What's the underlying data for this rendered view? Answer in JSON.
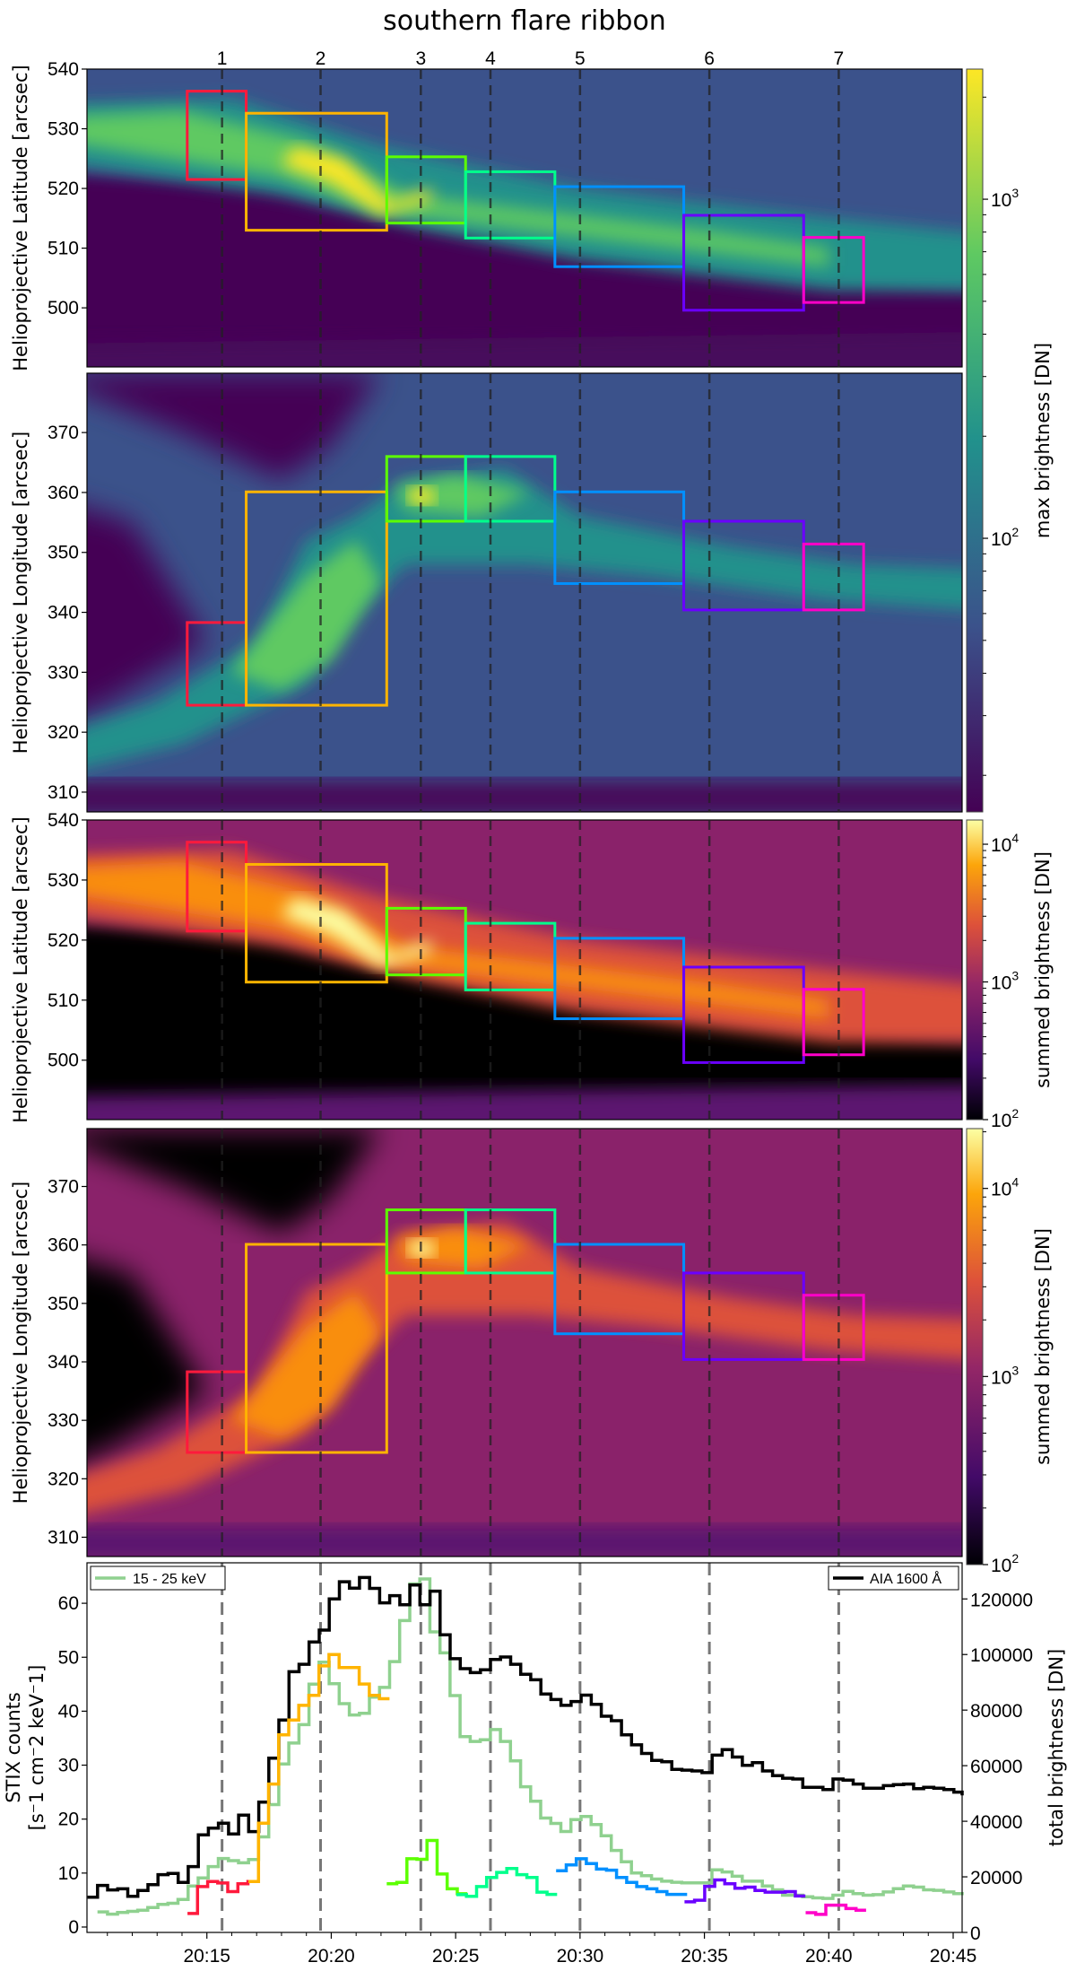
{
  "title": "southern flare ribbon",
  "markers": {
    "labels": [
      "1",
      "2",
      "3",
      "4",
      "5",
      "6",
      "7"
    ],
    "times_min_after_2000": [
      15.61,
      19.57,
      23.6,
      26.4,
      30.0,
      35.2,
      40.4
    ]
  },
  "image_panels": [
    {
      "name": "max-latitude",
      "ylabel": "Helioprojective Latitude [arcsec]",
      "ylim": [
        490.1,
        540
      ],
      "yticks": [
        "540",
        "530",
        "520",
        "510",
        "500"
      ],
      "ytick_values": [
        540,
        530,
        520,
        510,
        500
      ],
      "colormap": "viridis",
      "coord": "lat"
    },
    {
      "name": "max-longitude",
      "ylabel": "Helioprojective Longitude [arcsec]",
      "ylim": [
        306.7,
        379.9
      ],
      "yticks": [
        "370",
        "360",
        "350",
        "340",
        "330",
        "320",
        "310"
      ],
      "ytick_values": [
        370,
        360,
        350,
        340,
        330,
        320,
        310
      ],
      "colormap": "viridis",
      "coord": "lon"
    },
    {
      "name": "summed-latitude",
      "ylabel": "Helioprojective Latitude [arcsec]",
      "ylim": [
        490.1,
        540
      ],
      "yticks": [
        "540",
        "530",
        "520",
        "510",
        "500"
      ],
      "ytick_values": [
        540,
        530,
        520,
        510,
        500
      ],
      "colormap": "inferno",
      "coord": "lat"
    },
    {
      "name": "summed-longitude",
      "ylabel": "Helioprojective Longitude [arcsec]",
      "ylim": [
        306.7,
        379.9
      ],
      "yticks": [
        "370",
        "360",
        "350",
        "340",
        "330",
        "320",
        "310"
      ],
      "ytick_values": [
        370,
        360,
        350,
        340,
        330,
        320,
        310
      ],
      "colormap": "inferno",
      "coord": "lon"
    }
  ],
  "colorbars": [
    {
      "label": "max brightness [DN]",
      "colormap": "viridis",
      "range": [
        15.6,
        2420
      ],
      "ticks": [
        {
          "base": "10",
          "exp": "3",
          "value": 1000
        },
        {
          "base": "10",
          "exp": "2",
          "value": 100
        }
      ]
    },
    {
      "label": "summed brightness [DN]",
      "colormap": "inferno",
      "range": [
        100,
        15000
      ],
      "ticks": [
        {
          "base": "10",
          "exp": "4",
          "value": 10000
        },
        {
          "base": "10",
          "exp": "3",
          "value": 1000
        },
        {
          "base": "10",
          "exp": "2",
          "value": 100
        }
      ]
    },
    {
      "label": "summed brightness [DN]",
      "colormap": "inferno",
      "range": [
        100,
        20800
      ],
      "ticks": [
        {
          "base": "10",
          "exp": "4",
          "value": 10000
        },
        {
          "base": "10",
          "exp": "3",
          "value": 1000
        },
        {
          "base": "10",
          "exp": "2",
          "value": 100
        }
      ]
    }
  ],
  "boxes": [
    {
      "id": "1",
      "color": "#ff1a3c",
      "t_range": [
        14.21,
        16.58
      ],
      "lat_range": [
        521.5,
        536.3
      ],
      "lon_range": [
        324.5,
        338.3
      ]
    },
    {
      "id": "2",
      "color": "#ffb400",
      "t_range": [
        16.58,
        22.23
      ],
      "lat_range": [
        513.0,
        532.6
      ],
      "lon_range": [
        324.5,
        360.1
      ]
    },
    {
      "id": "3",
      "color": "#5cff00",
      "t_range": [
        22.23,
        25.4
      ],
      "lat_range": [
        514.2,
        525.3
      ],
      "lon_range": [
        355.2,
        366.0
      ]
    },
    {
      "id": "4",
      "color": "#00ff8c",
      "t_range": [
        25.4,
        28.99
      ],
      "lat_range": [
        511.7,
        522.8
      ],
      "lon_range": [
        355.2,
        366.0
      ]
    },
    {
      "id": "5",
      "color": "#0090ff",
      "t_range": [
        28.99,
        34.17
      ],
      "lat_range": [
        506.9,
        520.3
      ],
      "lon_range": [
        344.8,
        360.1
      ]
    },
    {
      "id": "6",
      "color": "#6a00ff",
      "t_range": [
        34.17,
        38.99
      ],
      "lat_range": [
        499.6,
        515.5
      ],
      "lon_range": [
        340.4,
        355.2
      ]
    },
    {
      "id": "7",
      "color": "#ff00c8",
      "t_range": [
        38.99,
        41.4
      ],
      "lat_range": [
        500.9,
        511.8
      ],
      "lon_range": [
        340.4,
        351.4
      ]
    }
  ],
  "chart_data": {
    "type": "line",
    "xlim_min_after_2000": [
      10.18,
      45.36
    ],
    "xticks": [
      "20:15",
      "20:20",
      "20:25",
      "20:30",
      "20:35",
      "20:40",
      "20:45"
    ],
    "xtick_values": [
      15,
      20,
      25,
      30,
      35,
      40,
      45
    ],
    "ylabel_left": [
      "STIX counts",
      "[s⁻1 cm⁻2 keV⁻1]"
    ],
    "ylim_left": [
      -1,
      67.5
    ],
    "yticks_left": [
      "0",
      "10",
      "20",
      "30",
      "40",
      "50",
      "60"
    ],
    "ytick_values_left": [
      0,
      10,
      20,
      30,
      40,
      50,
      60
    ],
    "ylabel_right": "total brightness [DN]",
    "ylim_right": [
      0,
      133000
    ],
    "yticks_right": [
      "0",
      "20000",
      "40000",
      "60000",
      "80000",
      "100000",
      "120000"
    ],
    "ytick_values_right": [
      0,
      20000,
      40000,
      60000,
      80000,
      100000,
      120000
    ],
    "legend_left": {
      "label": "15 - 25 keV",
      "position": "top-left"
    },
    "legend_right": {
      "label": "AIA 1600 Å",
      "position": "top-right"
    },
    "series": [
      {
        "name": "15 - 25 keV",
        "axis": "left",
        "color": "#8fd18f",
        "t0": 10.6,
        "dt": 0.405,
        "values": [
          2.8,
          2.4,
          2.7,
          2.9,
          3.1,
          3.6,
          4.2,
          4.4,
          5.1,
          7.6,
          9.1,
          11.2,
          12.7,
          12.3,
          11.9,
          12.5,
          16.7,
          22.7,
          30.2,
          34.1,
          37.5,
          45.0,
          49.1,
          45.1,
          41.4,
          39.3,
          39.6,
          42.6,
          44.4,
          49.2,
          56.8,
          63.6,
          64.5,
          54.7,
          50.8,
          42.9,
          35.3,
          34.4,
          34.7,
          36.6,
          34.4,
          30.8,
          26.0,
          23.3,
          20.2,
          19.2,
          17.7,
          19.9,
          20.5,
          19.0,
          16.9,
          14.2,
          12.1,
          10.0,
          9.5,
          8.9,
          8.5,
          8.3,
          8.2,
          8.2,
          8.2,
          10.6,
          10.2,
          9.4,
          8.5,
          8.5,
          7.6,
          6.9,
          5.9,
          5.9,
          5.6,
          5.4,
          5.3,
          5.9,
          6.6,
          6.2,
          5.9,
          6.0,
          6.5,
          7.1,
          7.6,
          7.4,
          6.9,
          6.8,
          6.5,
          6.2,
          5.9
        ]
      },
      {
        "name": "AIA 1600 Å",
        "axis": "right",
        "color": "#000000",
        "t0": 10.2,
        "dt": 0.405,
        "values": [
          12700,
          16900,
          15300,
          15700,
          13000,
          15100,
          17200,
          20800,
          21200,
          18000,
          23700,
          35100,
          37500,
          39300,
          35400,
          42200,
          36300,
          46900,
          62700,
          76400,
          93800,
          96500,
          104500,
          108800,
          120000,
          126200,
          123900,
          127700,
          123800,
          118600,
          121200,
          117900,
          125000,
          117900,
          122800,
          107100,
          98500,
          94900,
          93500,
          94500,
          98200,
          99100,
          96500,
          92900,
          90900,
          85800,
          83800,
          81700,
          83100,
          85400,
          82100,
          77800,
          76200,
          71100,
          67500,
          64400,
          61900,
          61400,
          58700,
          58400,
          58100,
          57500,
          63800,
          65800,
          63100,
          60100,
          61100,
          58100,
          56400,
          55500,
          55200,
          52200,
          52200,
          51400,
          55200,
          54800,
          53400,
          51900,
          51900,
          52800,
          53200,
          53400,
          51700,
          52200,
          51900,
          51400,
          50500,
          49300
        ]
      },
      {
        "name": "box 1",
        "axis": "right",
        "color": "#ff1a3c",
        "t0": 14.22,
        "dt": 0.405,
        "values": [
          6800,
          16500,
          18300,
          17800,
          14700,
          17500,
          18300
        ]
      },
      {
        "name": "box 2",
        "axis": "right",
        "color": "#ffb400",
        "t0": 16.67,
        "dt": 0.405,
        "values": [
          18300,
          39300,
          53400,
          71100,
          76400,
          81700,
          85300,
          95900,
          100000,
          95300,
          95300,
          89400,
          85300,
          84100
        ]
      },
      {
        "name": "box 3",
        "axis": "right",
        "color": "#5cff00",
        "t0": 22.23,
        "dt": 0.405,
        "values": [
          17500,
          18000,
          26500,
          26300,
          33100,
          21000,
          15700,
          13900
        ]
      },
      {
        "name": "box 4",
        "axis": "right",
        "color": "#00ff8c",
        "t0": 25.03,
        "dt": 0.405,
        "values": [
          13600,
          13000,
          16500,
          19800,
          21600,
          23000,
          20800,
          19800,
          14500,
          13700
        ]
      },
      {
        "name": "box 5",
        "axis": "right",
        "color": "#0090ff",
        "t0": 29.04,
        "dt": 0.405,
        "values": [
          22200,
          24300,
          26500,
          24800,
          22800,
          22400,
          19800,
          18000,
          16500,
          15700,
          14700,
          13700,
          13700
        ]
      },
      {
        "name": "box 6",
        "axis": "right",
        "color": "#6a00ff",
        "t0": 34.2,
        "dt": 0.405,
        "values": [
          11000,
          11600,
          16600,
          18900,
          17500,
          15900,
          16300,
          15100,
          14500,
          14500,
          14700,
          13100
        ]
      },
      {
        "name": "box 7",
        "axis": "right",
        "color": "#ff00c8",
        "t0": 39.07,
        "dt": 0.405,
        "values": [
          7100,
          6500,
          9800,
          9800,
          8600,
          8000
        ]
      }
    ]
  }
}
